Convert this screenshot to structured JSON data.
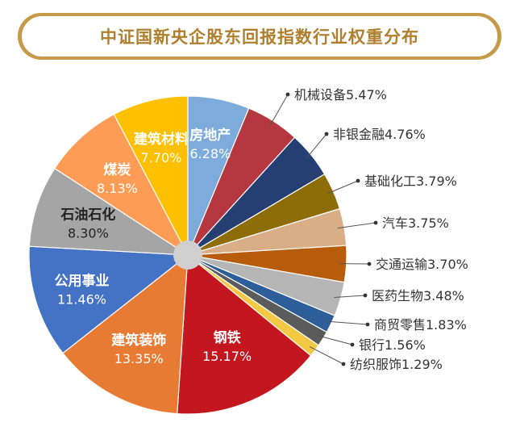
{
  "chart_data": {
    "type": "pie",
    "title": "中证国新央企股东回报指数行业权重分布",
    "slices": [
      {
        "label": "房地产",
        "value": 6.28,
        "display": "6.28%",
        "color": "#7cabdc"
      },
      {
        "label": "机械设备",
        "value": 5.47,
        "display": "5.47%",
        "color": "#b53841"
      },
      {
        "label": "非银金融",
        "value": 4.76,
        "display": "4.76%",
        "color": "#263f73"
      },
      {
        "label": "基础化工",
        "value": 3.79,
        "display": "3.79%",
        "color": "#8c6d08"
      },
      {
        "label": "汽车",
        "value": 3.75,
        "display": "3.75%",
        "color": "#d9ae87"
      },
      {
        "label": "交通运输",
        "value": 3.7,
        "display": "3.70%",
        "color": "#b75c0b"
      },
      {
        "label": "医药生物",
        "value": 3.48,
        "display": "3.48%",
        "color": "#b5b5b5"
      },
      {
        "label": "商贸零售",
        "value": 1.83,
        "display": "1.83%",
        "color": "#2d5e99"
      },
      {
        "label": "银行",
        "value": 1.56,
        "display": "1.56%",
        "color": "#5b5b5b"
      },
      {
        "label": "纺织服饰",
        "value": 1.29,
        "display": "1.29%",
        "color": "#f3c842"
      },
      {
        "label": "钢铁",
        "value": 15.17,
        "display": "15.17%",
        "color": "#c4161e"
      },
      {
        "label": "建筑装饰",
        "value": 13.35,
        "display": "13.35%",
        "color": "#e87b34"
      },
      {
        "label": "公用事业",
        "value": 11.46,
        "display": "11.46%",
        "color": "#4472c4"
      },
      {
        "label": "石油石化",
        "value": 8.3,
        "display": "8.30%",
        "color": "#a5a5a5"
      },
      {
        "label": "煤炭",
        "value": 8.13,
        "display": "8.13%",
        "color": "#fe9b55"
      },
      {
        "label": "建筑材料",
        "value": 7.7,
        "display": "7.70%",
        "color": "#fec000"
      }
    ]
  }
}
